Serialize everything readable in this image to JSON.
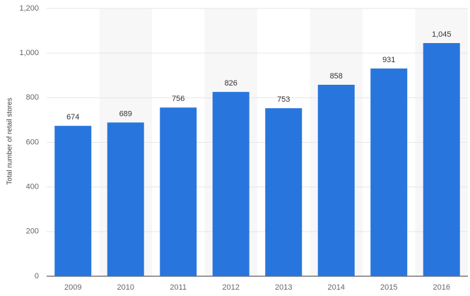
{
  "chart_data": {
    "type": "bar",
    "y_label": "Total number of retail stores",
    "categories": [
      "2009",
      "2010",
      "2011",
      "2012",
      "2013",
      "2014",
      "2015",
      "2016"
    ],
    "values": [
      674,
      689,
      756,
      826,
      753,
      858,
      931,
      1045
    ],
    "value_labels": [
      "674",
      "689",
      "756",
      "826",
      "753",
      "858",
      "931",
      "1,045"
    ],
    "color": "#2876dd",
    "ylim": [
      0,
      1200
    ],
    "yticks": [
      0,
      200,
      400,
      600,
      800,
      {
        "value": 1000,
        "label": "1,000"
      },
      {
        "value": 1200,
        "label": "1,200"
      }
    ],
    "grid": true
  }
}
